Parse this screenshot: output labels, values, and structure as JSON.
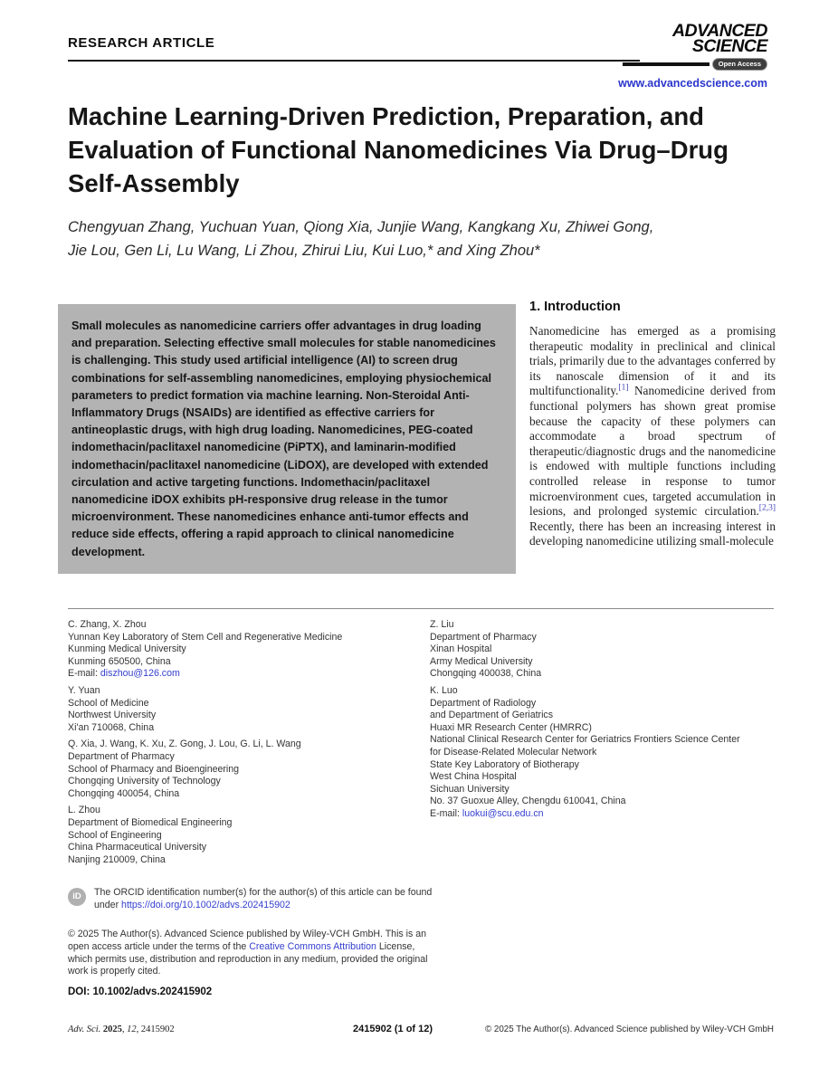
{
  "header": {
    "kicker": "RESEARCH ARTICLE",
    "brand": {
      "line1": "ADVANCED",
      "line2": "SCIENCE",
      "badge": "Open Access",
      "website": "www.advancedscience.com"
    }
  },
  "article": {
    "title_lines": [
      "Machine Learning-Driven Prediction, Preparation, and",
      "Evaluation of Functional Nanomedicines Via Drug–Drug",
      "Self-Assembly"
    ],
    "authors_line1": "Chengyuan Zhang, Yuchuan Yuan, Qiong Xia, Junjie Wang, Kangkang Xu, Zhiwei Gong,",
    "authors_line2": "Jie Lou, Gen Li, Lu Wang, Li Zhou, Zhirui Liu, Kui Luo,* and Xing Zhou*",
    "abstract": "Small molecules as nanomedicine carriers offer advantages in drug loading and preparation. Selecting effective small molecules for stable nanomedicines is challenging. This study used artificial intelligence (AI) to screen drug combinations for self-assembling nanomedicines, employing physiochemical parameters to predict formation via machine learning. Non-Steroidal Anti-Inflammatory Drugs (NSAIDs) are identified as effective carriers for antineoplastic drugs, with high drug loading. Nanomedicines, PEG-coated indomethacin/paclitaxel nanomedicine (PiPTX), and laminarin-modified indomethacin/paclitaxel nanomedicine (LiDOX), are developed with extended circulation and active targeting functions. Indomethacin/paclitaxel nanomedicine iDOX exhibits pH-responsive drug release in the tumor microenvironment. These nanomedicines enhance anti-tumor effects and reduce side effects, offering a rapid approach to clinical nanomedicine development.",
    "intro": {
      "heading": "1. Introduction",
      "p1": "Nanomedicine has emerged as a promising therapeutic modality in preclinical and clinical trials, primarily due to the advantages conferred by its nanoscale dimension of it and its multifunctionality.",
      "ref1": "[1]",
      "p2": " Nanomedicine derived from functional polymers has shown great promise because the capacity of these polymers can accommodate a broad spectrum of therapeutic/diagnostic drugs and the nanomedicine is endowed with multiple functions including controlled release in response to tumor microenvironment cues, targeted accumulation in lesions, and prolonged systemic circulation.",
      "ref2": "[2,3]",
      "p3": " Recently, there has been an increasing interest in developing nanomedicine utilizing small-molecule"
    }
  },
  "footnotes": {
    "left": [
      {
        "lines": [
          "C. Zhang, X. Zhou",
          "Yunnan Key Laboratory of Stem Cell and Regenerative Medicine",
          "Kunming Medical University",
          "Kunming 650500, China"
        ],
        "email_label": "E-mail: ",
        "email": "diszhou@126.com"
      },
      {
        "lines": [
          "Y. Yuan",
          "School of Medicine",
          "Northwest University",
          "Xi'an 710068, China"
        ]
      },
      {
        "lines": [
          "Q. Xia, J. Wang, K. Xu, Z. Gong, J. Lou, G. Li, L. Wang",
          "Department of Pharmacy",
          "School of Pharmacy and Bioengineering",
          "Chongqing University of Technology",
          "Chongqing 400054, China"
        ]
      },
      {
        "lines": [
          "L. Zhou",
          "Department of Biomedical Engineering",
          "School of Engineering",
          "China Pharmaceutical University",
          "Nanjing 210009, China"
        ]
      }
    ],
    "right": [
      {
        "lines": [
          "Z. Liu",
          "Department of Pharmacy",
          "Xinan Hospital",
          "Army Medical University",
          "Chongqing 400038, China"
        ]
      },
      {
        "lines": [
          "K. Luo",
          "Department of Radiology",
          "and Department of Geriatrics",
          "Huaxi MR Research Center (HMRRC)",
          "National Clinical Research Center for Geriatrics Frontiers Science Center",
          "for Disease-Related Molecular Network",
          "State Key Laboratory of Biotherapy",
          "West China Hospital",
          "Sichuan University",
          "No. 37 Guoxue Alley, Chengdu 610041, China"
        ],
        "email_label": "E-mail: ",
        "email": "luokui@scu.edu.cn"
      }
    ]
  },
  "notices": {
    "orcid_icon_label": "iD",
    "orcid_text": "The ORCID identification number(s) for the author(s) of this article can be found under ",
    "orcid_link": "https://doi.org/10.1002/advs.202415902",
    "copyright_pre": "© 2025 The Author(s). Advanced Science published by Wiley-VCH GmbH. This is an open access article under the terms of the ",
    "copyright_link": "Creative Commons Attribution",
    "copyright_post": " License, which permits use, distribution and reproduction in any medium, provided the original work is properly cited.",
    "doi": "DOI: 10.1002/advs.202415902"
  },
  "footer": {
    "journal": "Adv. Sci.",
    "space1": " ",
    "year": "2025",
    "comma1": ", ",
    "volume": "12",
    "comma2": ", ",
    "article_no": "2415902",
    "center": "2415902 (1 of 12)",
    "right": "© 2025 The Author(s). Advanced Science published by Wiley-VCH GmbH"
  },
  "colors": {
    "link": "#3540cf",
    "abstract_bg": "#b3b3b3",
    "brand_blue": "#2b36cc"
  }
}
